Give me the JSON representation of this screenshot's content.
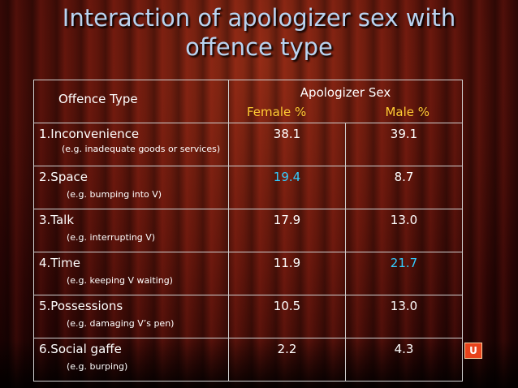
{
  "slide": {
    "title_line1": "Interaction of apologizer sex with",
    "title_line2": "offence type"
  },
  "table": {
    "header": {
      "offence_type": "Offence Type",
      "group": "Apologizer Sex",
      "female": "Female %",
      "male": "Male %"
    },
    "rows": [
      {
        "category": "1.Inconvenience",
        "example": "(e.g. inadequate goods or services)",
        "female": "38.1",
        "male": "39.1",
        "highlight": ""
      },
      {
        "category": "2.Space",
        "example": "(e.g. bumping into V)",
        "female": "19.4",
        "male": "8.7",
        "highlight": "female"
      },
      {
        "category": "3.Talk",
        "example": "(e.g. interrupting V)",
        "female": "17.9",
        "male": "13.0",
        "highlight": ""
      },
      {
        "category": "4.Time",
        "example": "(e.g. keeping V waiting)",
        "female": "11.9",
        "male": "21.7",
        "highlight": "male"
      },
      {
        "category": "5.Possessions",
        "example": "(e.g. damaging V’s pen)",
        "female": "10.5",
        "male": "13.0",
        "highlight": ""
      },
      {
        "category": "6.Social gaffe",
        "example": "(e.g. burping)",
        "female": "2.2",
        "male": "4.3",
        "highlight": ""
      }
    ]
  },
  "colors": {
    "title": "#b9d3f0",
    "subheader": "#ffcc33",
    "highlight": "#33ccff",
    "text": "#ffffff"
  },
  "icons": {
    "corner_logo": "u-logo-icon"
  }
}
